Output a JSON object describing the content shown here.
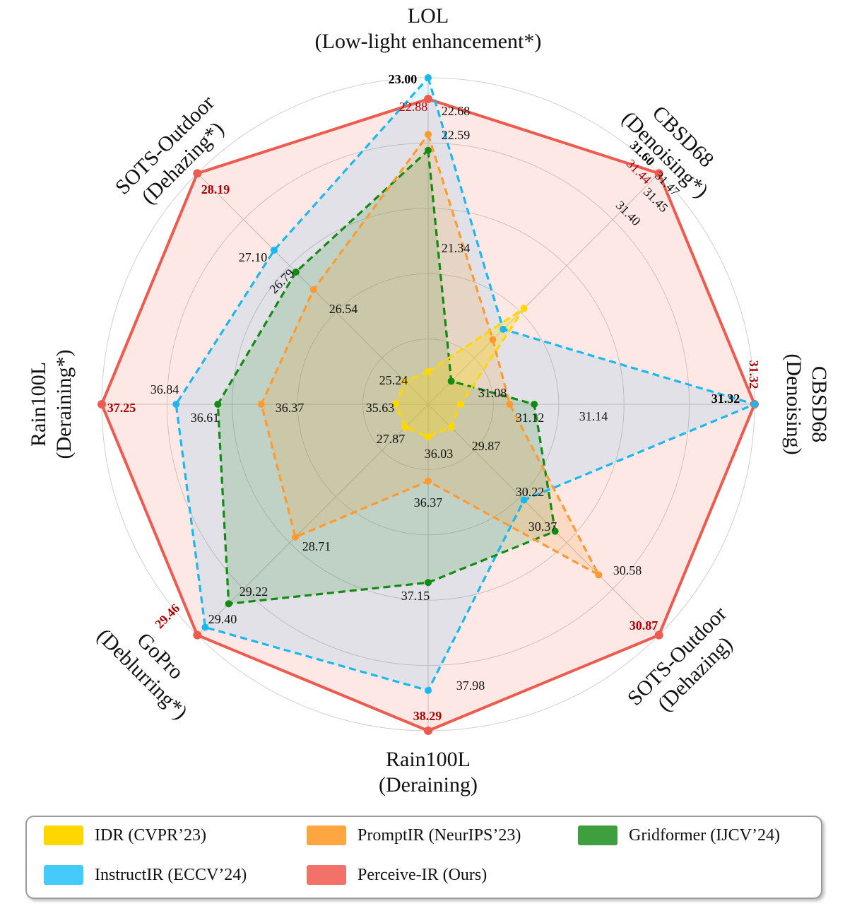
{
  "chart_data": {
    "type": "radar",
    "dimensions": [
      {
        "name": "LOL",
        "task": "(Low-light enhancement*)"
      },
      {
        "name": "CBSD68",
        "task": "(Denoising*)"
      },
      {
        "name": "CBSD68",
        "task": "(Denoising)"
      },
      {
        "name": "SOTS-Outdoor",
        "task": "(Dehazing)"
      },
      {
        "name": "Rain100L",
        "task": "(Deraining)"
      },
      {
        "name": "GoPro",
        "task": "(Deblurring*)"
      },
      {
        "name": "Rain100L",
        "task": "(Deraining*)"
      },
      {
        "name": "SOTS-Outdoor",
        "task": "(Dehazing*)"
      }
    ],
    "series": [
      {
        "name": "IDR (CVPR’23)",
        "color": "#FFD700",
        "values": [
          21.34,
          31.47,
          31.08,
          29.87,
          36.03,
          27.87,
          35.63,
          25.24
        ]
      },
      {
        "name": "PromptIR (NeurIPS’23)",
        "color": "#FF9A2E",
        "values": [
          22.68,
          31.44,
          31.12,
          30.58,
          36.37,
          28.71,
          36.37,
          26.54
        ]
      },
      {
        "name": "Gridformer (IJCV’24)",
        "color": "#138A13",
        "values": [
          22.59,
          31.4,
          31.14,
          30.37,
          37.15,
          29.22,
          36.61,
          26.79
        ]
      },
      {
        "name": "InstructIR (ECCV’24)",
        "color": "#1AB8F0",
        "values": [
          23.0,
          31.45,
          31.32,
          30.22,
          37.98,
          29.4,
          36.84,
          27.1
        ]
      },
      {
        "name": "Perceive-IR (Ours)",
        "color": "#EE5A4E",
        "values": [
          22.88,
          31.6,
          31.32,
          30.87,
          38.29,
          29.46,
          37.25,
          28.19
        ]
      }
    ],
    "value_labels": [
      {
        "dim": 0,
        "text": "23.00",
        "style": "blackbold"
      },
      {
        "dim": 0,
        "text": "22.88",
        "style": "second"
      },
      {
        "dim": 0,
        "text": "22.68",
        "style": "normal"
      },
      {
        "dim": 0,
        "text": "22.59",
        "style": "normal"
      },
      {
        "dim": 0,
        "text": "21.34",
        "style": "normal"
      },
      {
        "dim": 1,
        "text": "31.60",
        "style": "blackbold"
      },
      {
        "dim": 1,
        "text": "31.44",
        "style": "second"
      },
      {
        "dim": 1,
        "text": "31.47",
        "style": "normal"
      },
      {
        "dim": 1,
        "text": "31.45",
        "style": "normal"
      },
      {
        "dim": 1,
        "text": "31.40",
        "style": "normal"
      },
      {
        "dim": 2,
        "text": "31.32",
        "style": "best"
      },
      {
        "dim": 2,
        "text": "31.32",
        "style": "blackbold"
      },
      {
        "dim": 2,
        "text": "31.08",
        "style": "normal"
      },
      {
        "dim": 2,
        "text": "31.12",
        "style": "normal"
      },
      {
        "dim": 2,
        "text": "31.14",
        "style": "normal"
      },
      {
        "dim": 3,
        "text": "29.87",
        "style": "normal"
      },
      {
        "dim": 3,
        "text": "30.22",
        "style": "normal"
      },
      {
        "dim": 3,
        "text": "30.37",
        "style": "normal"
      },
      {
        "dim": 3,
        "text": "30.58",
        "style": "normal"
      },
      {
        "dim": 3,
        "text": "30.87",
        "style": "best"
      },
      {
        "dim": 4,
        "text": "36.03",
        "style": "normal"
      },
      {
        "dim": 4,
        "text": "36.37",
        "style": "normal"
      },
      {
        "dim": 4,
        "text": "37.15",
        "style": "normal"
      },
      {
        "dim": 4,
        "text": "37.98",
        "style": "normal"
      },
      {
        "dim": 4,
        "text": "38.29",
        "style": "best"
      },
      {
        "dim": 5,
        "text": "27.87",
        "style": "normal"
      },
      {
        "dim": 5,
        "text": "28.71",
        "style": "normal"
      },
      {
        "dim": 5,
        "text": "29.22",
        "style": "normal"
      },
      {
        "dim": 5,
        "text": "29.40",
        "style": "normal"
      },
      {
        "dim": 5,
        "text": "29.46",
        "style": "best"
      },
      {
        "dim": 6,
        "text": "35.63",
        "style": "normal"
      },
      {
        "dim": 6,
        "text": "36.37",
        "style": "normal"
      },
      {
        "dim": 6,
        "text": "36.61",
        "style": "normal"
      },
      {
        "dim": 6,
        "text": "36.84",
        "style": "normal"
      },
      {
        "dim": 6,
        "text": "37.25",
        "style": "best"
      },
      {
        "dim": 7,
        "text": "25.24",
        "style": "normal"
      },
      {
        "dim": 7,
        "text": "26.54",
        "style": "normal"
      },
      {
        "dim": 7,
        "text": "26.79",
        "style": "normal"
      },
      {
        "dim": 7,
        "text": "27.10",
        "style": "normal"
      },
      {
        "dim": 7,
        "text": "28.19",
        "style": "best"
      }
    ],
    "grid": true,
    "grid_rings": 5
  },
  "legend": {
    "items": [
      {
        "label": "IDR (CVPR’23)",
        "color": "#FFD700"
      },
      {
        "label": "PromptIR (NeurIPS’23)",
        "color": "#FFA640"
      },
      {
        "label": "Gridformer (IJCV’24)",
        "color": "#3F9F3F"
      },
      {
        "label": "InstructIR (ECCV’24)",
        "color": "#45CBFA"
      },
      {
        "label": "Perceive-IR (Ours)",
        "color": "#F2726A"
      }
    ]
  }
}
